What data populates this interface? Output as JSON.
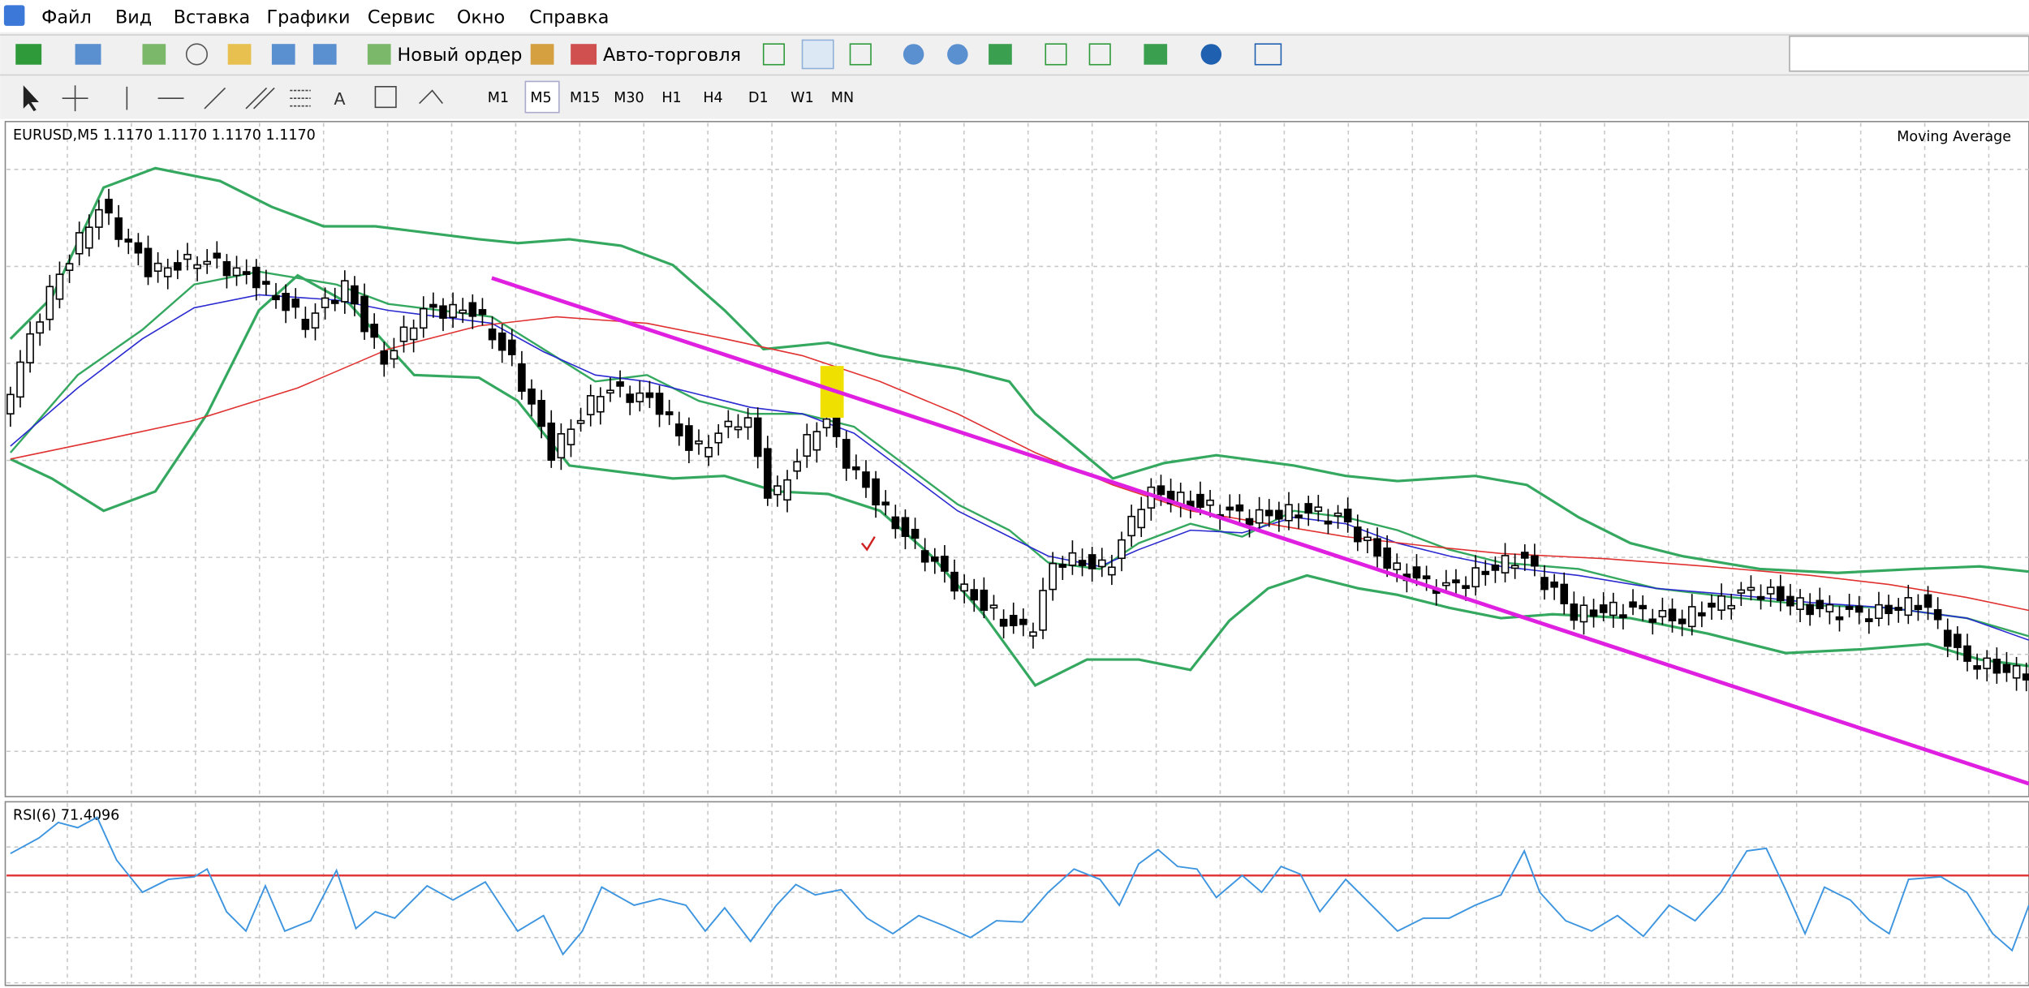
{
  "menu": [
    "Файл",
    "Вид",
    "Вставка",
    "Графики",
    "Сервис",
    "Окно",
    "Справка"
  ],
  "toolbar": {
    "new_order": "Новый ордер",
    "auto_trading": "Авто-торговля"
  },
  "timeframes": [
    "M1",
    "M5",
    "M15",
    "M30",
    "H1",
    "H4",
    "D1",
    "W1",
    "MN"
  ],
  "chart": {
    "symbol_label": "EURUSD,M5  1.1170 1.1170 1.1170 1.1170",
    "indicator_label": "Moving Average",
    "rsi_label": "RSI(6) 71.4096"
  }
}
